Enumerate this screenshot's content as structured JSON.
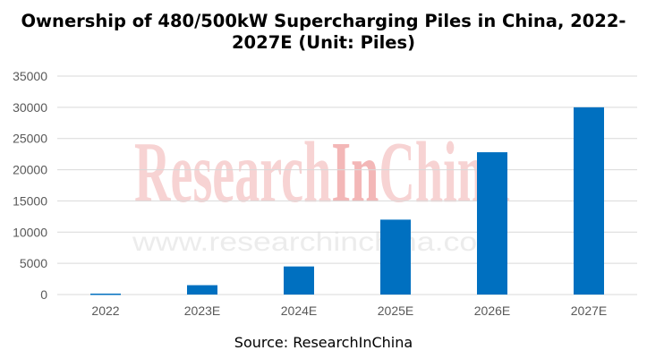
{
  "title": "Ownership of 480/500kW Supercharging Piles in China, 2022-2027E (Unit: Piles)",
  "source": "Source: ResearchInChina",
  "watermark": {
    "part1": "Research",
    "part2": "In",
    "part3": "China",
    "url": "www.researchinchina.com"
  },
  "colors": {
    "bar": "#0070c0",
    "grid": "#d9d9d9",
    "tick_text": "#595959",
    "watermark": "#f7d3d3"
  },
  "chart_data": {
    "type": "bar",
    "title": "Ownership of 480/500kW Supercharging Piles in China, 2022-2027E (Unit: Piles)",
    "categories": [
      "2022",
      "2023E",
      "2024E",
      "2025E",
      "2026E",
      "2027E"
    ],
    "values": [
      150,
      1500,
      4500,
      12000,
      22800,
      30000
    ],
    "xlabel": "",
    "ylabel": "",
    "ylim": [
      0,
      35000
    ],
    "yticks": [
      0,
      5000,
      10000,
      15000,
      20000,
      25000,
      30000,
      35000
    ],
    "grid": true,
    "legend": "none"
  }
}
